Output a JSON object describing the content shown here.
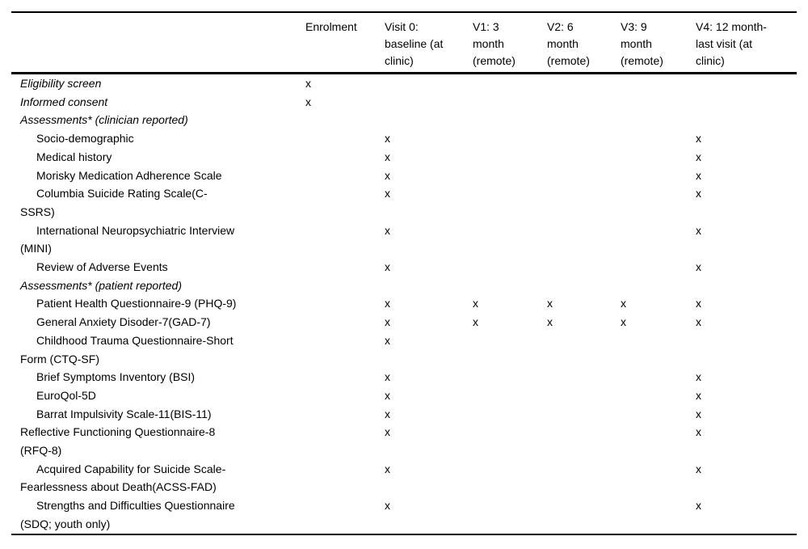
{
  "page": {
    "background": "#ffffff",
    "text_color": "#000000",
    "rule_color": "#000000"
  },
  "table": {
    "mark_glyph": "x",
    "columns": [
      {
        "id": "items",
        "label": ""
      },
      {
        "id": "enrolment",
        "label": "Enrolment"
      },
      {
        "id": "visit0",
        "label": "Visit 0:\nbaseline (at\nclinic)"
      },
      {
        "id": "v1",
        "label": "V1: 3\nmonth\n(remote)"
      },
      {
        "id": "v2",
        "label": "V2: 6\nmonth\n(remote)"
      },
      {
        "id": "v3",
        "label": "V3: 9\nmonth\n(remote)"
      },
      {
        "id": "v4",
        "label": "V4: 12 month-\nlast visit (at\nclinic)"
      }
    ],
    "rows": [
      {
        "label": "Eligibility screen",
        "italic": true,
        "indent": false,
        "marks": [
          "x",
          "",
          "",
          "",
          "",
          ""
        ]
      },
      {
        "label": "Informed consent",
        "italic": true,
        "indent": false,
        "marks": [
          "x",
          "",
          "",
          "",
          "",
          ""
        ]
      },
      {
        "label": "Assessments* (clinician reported)",
        "italic": true,
        "indent": false,
        "marks": [
          "",
          "",
          "",
          "",
          "",
          ""
        ]
      },
      {
        "label": "Socio-demographic",
        "italic": false,
        "indent": true,
        "marks": [
          "",
          "x",
          "",
          "",
          "",
          "x"
        ]
      },
      {
        "label": "Medical history",
        "italic": false,
        "indent": true,
        "marks": [
          "",
          "x",
          "",
          "",
          "",
          "x"
        ]
      },
      {
        "label": "Morisky Medication Adherence Scale",
        "italic": false,
        "indent": true,
        "marks": [
          "",
          "x",
          "",
          "",
          "",
          "x"
        ]
      },
      {
        "label": "Columbia Suicide Rating Scale(C-\nSSRS)",
        "italic": false,
        "indent": true,
        "marks": [
          "",
          "x",
          "",
          "",
          "",
          "x"
        ]
      },
      {
        "label": "International Neuropsychiatric Interview\n(MINI)",
        "italic": false,
        "indent": true,
        "marks": [
          "",
          "x",
          "",
          "",
          "",
          "x"
        ]
      },
      {
        "label": "Review of Adverse Events",
        "italic": false,
        "indent": true,
        "marks": [
          "",
          "x",
          "",
          "",
          "",
          "x"
        ]
      },
      {
        "label": "Assessments* (patient reported)",
        "italic": true,
        "indent": false,
        "marks": [
          "",
          "",
          "",
          "",
          "",
          ""
        ]
      },
      {
        "label": "Patient Health Questionnaire-9 (PHQ-9)",
        "italic": false,
        "indent": true,
        "marks": [
          "",
          "x",
          "x",
          "x",
          "x",
          "x"
        ]
      },
      {
        "label": "General Anxiety Disoder-7(GAD-7)",
        "italic": false,
        "indent": true,
        "marks": [
          "",
          "x",
          "x",
          "x",
          "x",
          "x"
        ]
      },
      {
        "label": "Childhood Trauma Questionnaire-Short\nForm (CTQ-SF)",
        "italic": false,
        "indent": true,
        "marks": [
          "",
          "x",
          "",
          "",
          "",
          ""
        ]
      },
      {
        "label": "Brief Symptoms Inventory (BSI)",
        "italic": false,
        "indent": true,
        "marks": [
          "",
          "x",
          "",
          "",
          "",
          "x"
        ]
      },
      {
        "label": "EuroQol-5D",
        "italic": false,
        "indent": true,
        "marks": [
          "",
          "x",
          "",
          "",
          "",
          "x"
        ]
      },
      {
        "label": "Barrat Impulsivity Scale-11(BIS-11)",
        "italic": false,
        "indent": true,
        "marks": [
          "",
          "x",
          "",
          "",
          "",
          "x"
        ]
      },
      {
        "label": "Reflective Functioning Questionnaire-8\n(RFQ-8)",
        "italic": false,
        "indent": false,
        "marks": [
          "",
          "x",
          "",
          "",
          "",
          "x"
        ]
      },
      {
        "label": "Acquired Capability for Suicide Scale-\nFearlessness about Death(ACSS-FAD)",
        "italic": false,
        "indent": true,
        "marks": [
          "",
          "x",
          "",
          "",
          "",
          "x"
        ]
      },
      {
        "label": "Strengths and Difficulties Questionnaire\n(SDQ; youth only)",
        "italic": false,
        "indent": true,
        "marks": [
          "",
          "x",
          "",
          "",
          "",
          "x"
        ]
      }
    ]
  }
}
